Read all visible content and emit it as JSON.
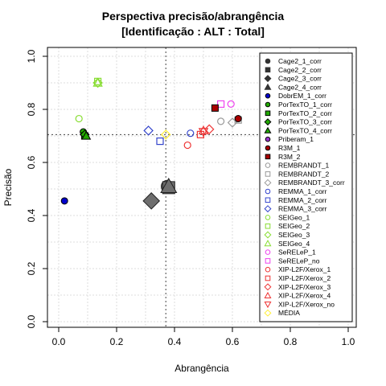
{
  "chart_data": {
    "type": "scatter",
    "title": "Perspectiva precisão/abrangência",
    "subtitle": "[Identificação : ALT : Total]",
    "xlabel": "Abrangência",
    "ylabel": "Precisão",
    "xlim": [
      0,
      1
    ],
    "ylim": [
      0,
      1
    ],
    "x_ticks": [
      "0.0",
      "0.2",
      "0.4",
      "0.6",
      "0.8",
      "1.0"
    ],
    "y_ticks": [
      "0.0",
      "0.2",
      "0.4",
      "0.6",
      "0.8",
      "1.0"
    ],
    "grid": true,
    "legend_position": "right",
    "reference_lines": {
      "x": 0.37,
      "y": 0.705
    },
    "series": [
      {
        "name": "Cage2_1_corr",
        "color": "#333333",
        "shape": "circle",
        "fill": true,
        "x": 0.375,
        "y": 0.51
      },
      {
        "name": "Cage2_2_corr",
        "color": "#333333",
        "shape": "square",
        "fill": true,
        "x": 0.38,
        "y": 0.505
      },
      {
        "name": "Cage2_3_corr",
        "color": "#333333",
        "shape": "diamond",
        "fill": true,
        "x": 0.32,
        "y": 0.455
      },
      {
        "name": "Cage2_4_corr",
        "color": "#333333",
        "shape": "triangle",
        "fill": true,
        "x": 0.38,
        "y": 0.51
      },
      {
        "name": "DobrEM_1_corr",
        "color": "#0000cc",
        "shape": "circle",
        "fill": true,
        "x": 0.02,
        "y": 0.455
      },
      {
        "name": "PorTexTO_1_corr",
        "color": "#22aa00",
        "shape": "circle",
        "fill": true,
        "x": 0.085,
        "y": 0.715
      },
      {
        "name": "PorTexTO_2_corr",
        "color": "#22aa00",
        "shape": "square",
        "fill": true,
        "x": 0.09,
        "y": 0.7
      },
      {
        "name": "PorTexTO_3_corr",
        "color": "#22aa00",
        "shape": "diamond",
        "fill": true,
        "x": 0.09,
        "y": 0.705
      },
      {
        "name": "PorTexTO_4_corr",
        "color": "#22aa00",
        "shape": "triangle",
        "fill": true,
        "x": 0.095,
        "y": 0.7
      },
      {
        "name": "Priberam_1",
        "color": "#9933cc",
        "shape": "circle",
        "fill": true,
        "x": null,
        "y": null
      },
      {
        "name": "R3M_1",
        "color": "#aa0000",
        "shape": "circle",
        "fill": true,
        "x": 0.62,
        "y": 0.765
      },
      {
        "name": "R3M_2",
        "color": "#aa0000",
        "shape": "square",
        "fill": true,
        "x": 0.54,
        "y": 0.805
      },
      {
        "name": "REMBRANDT_1",
        "color": "#999999",
        "shape": "circle",
        "fill": false,
        "x": 0.56,
        "y": 0.755
      },
      {
        "name": "REMBRANDT_2",
        "color": "#999999",
        "shape": "square",
        "fill": false,
        "x": 0.62,
        "y": 0.76
      },
      {
        "name": "REMBRANDT_3_corr",
        "color": "#999999",
        "shape": "diamond",
        "fill": false,
        "x": 0.6,
        "y": 0.75
      },
      {
        "name": "REMMA_1_corr",
        "color": "#3344cc",
        "shape": "circle",
        "fill": false,
        "x": 0.455,
        "y": 0.71
      },
      {
        "name": "REMMA_2_corr",
        "color": "#3344cc",
        "shape": "square",
        "fill": false,
        "x": 0.35,
        "y": 0.68
      },
      {
        "name": "REMMA_3_corr",
        "color": "#3344cc",
        "shape": "diamond",
        "fill": false,
        "x": 0.31,
        "y": 0.72
      },
      {
        "name": "SEIGeo_1",
        "color": "#88dd33",
        "shape": "circle",
        "fill": false,
        "x": 0.07,
        "y": 0.765
      },
      {
        "name": "SEIGeo_2",
        "color": "#88dd33",
        "shape": "square",
        "fill": false,
        "x": 0.135,
        "y": 0.905
      },
      {
        "name": "SEIGeo_3",
        "color": "#88dd33",
        "shape": "diamond",
        "fill": false,
        "x": 0.135,
        "y": 0.9
      },
      {
        "name": "SEIGeo_4",
        "color": "#88dd33",
        "shape": "triangle",
        "fill": false,
        "x": 0.135,
        "y": 0.9
      },
      {
        "name": "SeRELeP_1",
        "color": "#ee44ee",
        "shape": "circle",
        "fill": false,
        "x": 0.595,
        "y": 0.82
      },
      {
        "name": "SeRELeP_no",
        "color": "#ee44ee",
        "shape": "square",
        "fill": false,
        "x": 0.56,
        "y": 0.82
      },
      {
        "name": "XIP-L2F/Xerox_1",
        "color": "#ee3333",
        "shape": "circle",
        "fill": false,
        "x": 0.445,
        "y": 0.665
      },
      {
        "name": "XIP-L2F/Xerox_2",
        "color": "#ee3333",
        "shape": "square",
        "fill": false,
        "x": 0.49,
        "y": 0.705
      },
      {
        "name": "XIP-L2F/Xerox_3",
        "color": "#ee3333",
        "shape": "diamond",
        "fill": false,
        "x": 0.52,
        "y": 0.725
      },
      {
        "name": "XIP-L2F/Xerox_4",
        "color": "#ee3333",
        "shape": "triangle",
        "fill": false,
        "x": 0.5,
        "y": 0.72
      },
      {
        "name": "XIP-L2F/Xerox_no",
        "color": "#ee3333",
        "shape": "triangle-down",
        "fill": false,
        "x": 0.5,
        "y": 0.715
      },
      {
        "name": "MÉDIA",
        "color": "#ffee33",
        "shape": "diamond",
        "fill": false,
        "x": 0.37,
        "y": 0.705,
        "large": true
      }
    ]
  }
}
